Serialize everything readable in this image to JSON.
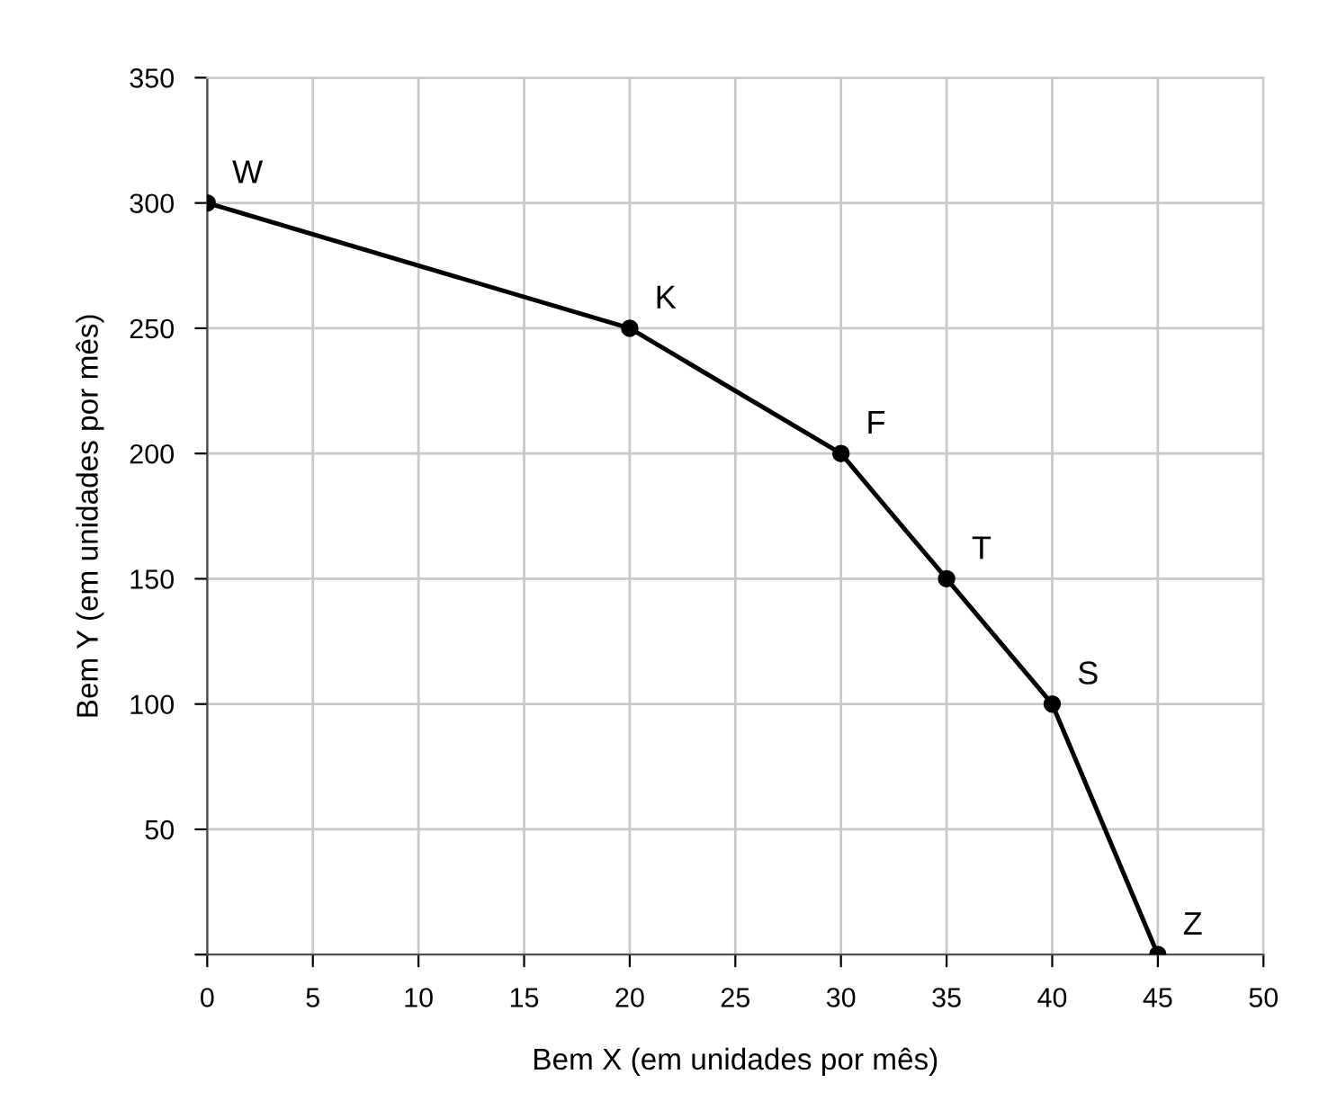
{
  "chart_data": {
    "type": "line",
    "xlabel": "Bem X (em unidades por mês)",
    "ylabel": "Bem Y (em unidades por mês)",
    "x": [
      0,
      20,
      30,
      35,
      40,
      45
    ],
    "series": [
      {
        "color": "#000000",
        "values": [
          300,
          250,
          200,
          150,
          100,
          0
        ]
      }
    ],
    "xlim": [
      0,
      50
    ],
    "xticks": [
      0,
      5,
      10,
      15,
      20,
      25,
      30,
      35,
      40,
      45,
      50
    ],
    "ylim": [
      0,
      350
    ],
    "yticks": [
      {
        "value": 0,
        "label": null
      },
      50,
      100,
      150,
      200,
      250,
      300,
      350
    ],
    "grid": true,
    "marker": "circle",
    "line_style": "solid",
    "legend": false,
    "annotations": [
      {
        "text": "W",
        "x": 0,
        "y": 300
      },
      {
        "text": "K",
        "x": 20,
        "y": 250
      },
      {
        "text": "F",
        "x": 30,
        "y": 200
      },
      {
        "text": "T",
        "x": 35,
        "y": 150
      },
      {
        "text": "S",
        "x": 40,
        "y": 100
      },
      {
        "text": "Z",
        "x": 45,
        "y": 0
      }
    ]
  }
}
